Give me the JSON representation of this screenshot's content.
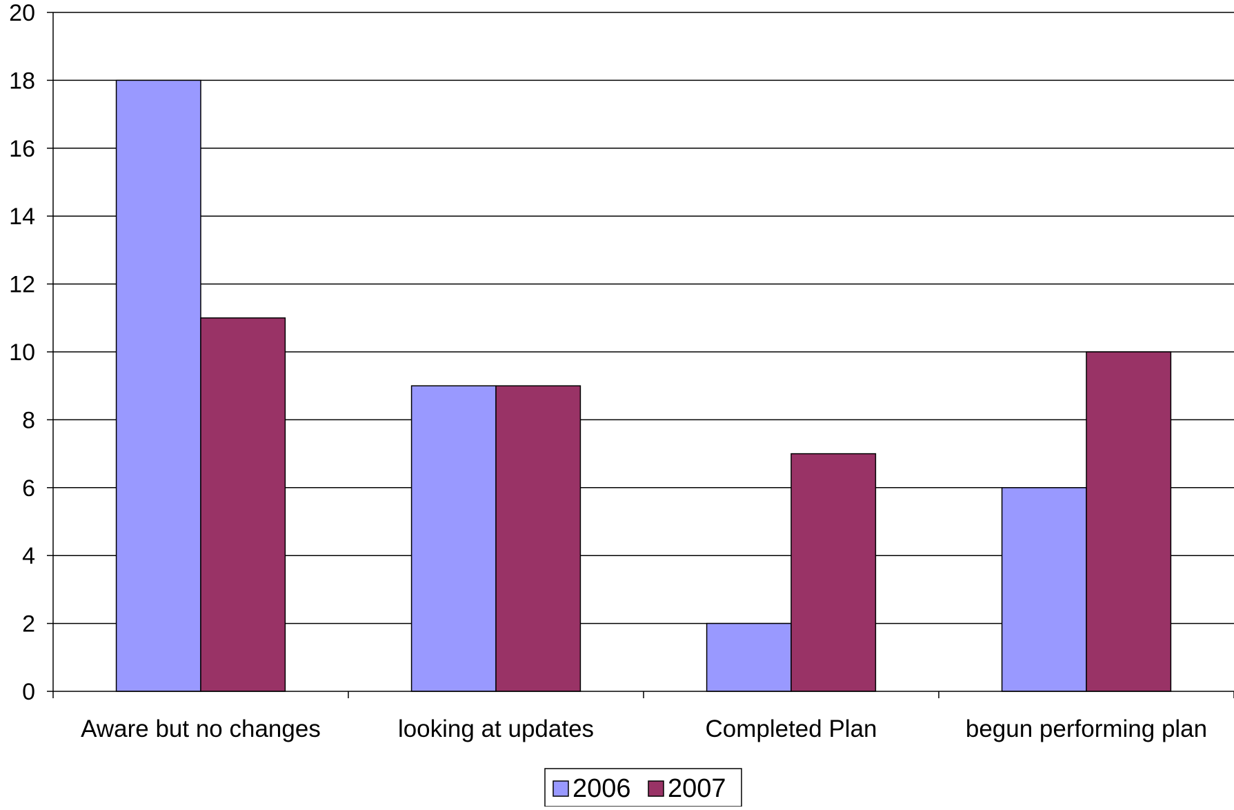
{
  "chart_data": {
    "type": "bar",
    "title": "",
    "xlabel": "",
    "ylabel": "",
    "categories": [
      "Aware but no changes",
      "looking at updates",
      "Completed Plan",
      "begun performing plan"
    ],
    "series": [
      {
        "name": "2006",
        "values": [
          18,
          9,
          2,
          6
        ],
        "color": "#9999ff"
      },
      {
        "name": "2007",
        "values": [
          11,
          9,
          7,
          10
        ],
        "color": "#993366"
      }
    ],
    "ylim": [
      0,
      20
    ],
    "yticks": [
      0,
      2,
      4,
      6,
      8,
      10,
      12,
      14,
      16,
      18,
      20
    ],
    "grid": true,
    "legend_position": "bottom"
  }
}
